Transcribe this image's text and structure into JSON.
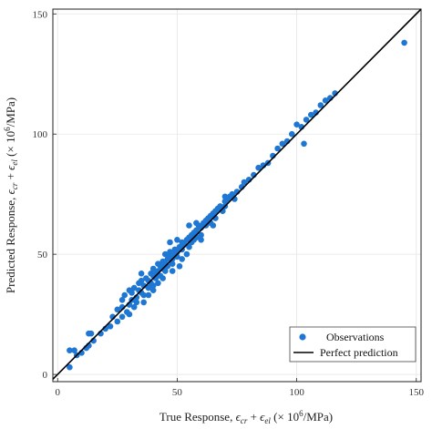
{
  "chart_data": {
    "type": "scatter",
    "title": "",
    "xlabel": "True Response, ϵcr + ϵel (× 10⁶/MPa)",
    "ylabel": "Predicted Response, ϵcr + ϵel (× 10⁶/MPa)",
    "xlabel_parts": {
      "prefix": "True Response, ",
      "eps": "ϵ",
      "sub1": "cr",
      "plus": " + ",
      "sub2": "el",
      "suffix_open": " (× 10",
      "sup": "6",
      "suffix_close": "/MPa)"
    },
    "ylabel_parts": {
      "prefix": "Predicted Response, ",
      "eps": "ϵ",
      "sub1": "cr",
      "plus": " + ",
      "sub2": "el",
      "suffix_open": " (× 10",
      "sup": "6",
      "suffix_close": "/MPa)"
    },
    "xlim": [
      -2,
      152
    ],
    "ylim": [
      -3,
      152
    ],
    "xticks": [
      0,
      50,
      100,
      150
    ],
    "yticks": [
      0,
      50,
      100,
      150
    ],
    "xtick_labels": [
      "0",
      "50",
      "100",
      "150"
    ],
    "ytick_labels": [
      "0",
      "50",
      "100",
      "150"
    ],
    "grid": true,
    "legend_position": "bottom-right",
    "marker_color": "#1f77d4",
    "line_color": "#000000",
    "series": [
      {
        "name": "Observations",
        "kind": "points"
      },
      {
        "name": "Perfect prediction",
        "kind": "line",
        "x": [
          -2,
          152
        ],
        "y": [
          -2,
          152
        ]
      }
    ],
    "points": [
      [
        5,
        10
      ],
      [
        7,
        10
      ],
      [
        5,
        3
      ],
      [
        8,
        8
      ],
      [
        10,
        9
      ],
      [
        12,
        11
      ],
      [
        13,
        12
      ],
      [
        15,
        14
      ],
      [
        13,
        17
      ],
      [
        14,
        17
      ],
      [
        18,
        17
      ],
      [
        20,
        19
      ],
      [
        22,
        20
      ],
      [
        23,
        24
      ],
      [
        25,
        22
      ],
      [
        25,
        27
      ],
      [
        27,
        28
      ],
      [
        27,
        31
      ],
      [
        28,
        33
      ],
      [
        29,
        26
      ],
      [
        30,
        25
      ],
      [
        30,
        29
      ],
      [
        31,
        31
      ],
      [
        31,
        34
      ],
      [
        32,
        36
      ],
      [
        33,
        32
      ],
      [
        33,
        30
      ],
      [
        34,
        35
      ],
      [
        34,
        38
      ],
      [
        35,
        42
      ],
      [
        35,
        34
      ],
      [
        36,
        37
      ],
      [
        36,
        33
      ],
      [
        37,
        40
      ],
      [
        38,
        36
      ],
      [
        38,
        39
      ],
      [
        39,
        42
      ],
      [
        39,
        38
      ],
      [
        40,
        41
      ],
      [
        40,
        44
      ],
      [
        40,
        37
      ],
      [
        41,
        42
      ],
      [
        41,
        40
      ],
      [
        42,
        46
      ],
      [
        42,
        43
      ],
      [
        43,
        41
      ],
      [
        43,
        45
      ],
      [
        44,
        44
      ],
      [
        44,
        47
      ],
      [
        45,
        46
      ],
      [
        45,
        43
      ],
      [
        46,
        48
      ],
      [
        46,
        45
      ],
      [
        47,
        49
      ],
      [
        47,
        51
      ],
      [
        47,
        55
      ],
      [
        48,
        48
      ],
      [
        48,
        46
      ],
      [
        49,
        50
      ],
      [
        49,
        52
      ],
      [
        50,
        49
      ],
      [
        50,
        51
      ],
      [
        51,
        53
      ],
      [
        51,
        45
      ],
      [
        52,
        52
      ],
      [
        52,
        55
      ],
      [
        53,
        54
      ],
      [
        54,
        50
      ],
      [
        54,
        56
      ],
      [
        55,
        57
      ],
      [
        55,
        53
      ],
      [
        56,
        55
      ],
      [
        56,
        58
      ],
      [
        57,
        59
      ],
      [
        57,
        56
      ],
      [
        58,
        60
      ],
      [
        58,
        57
      ],
      [
        59,
        62
      ],
      [
        60,
        61
      ],
      [
        60,
        58
      ],
      [
        61,
        63
      ],
      [
        62,
        62
      ],
      [
        62,
        64
      ],
      [
        63,
        65
      ],
      [
        64,
        63
      ],
      [
        64,
        66
      ],
      [
        65,
        67
      ],
      [
        66,
        68
      ],
      [
        66,
        65
      ],
      [
        67,
        69
      ],
      [
        68,
        70
      ],
      [
        69,
        68
      ],
      [
        70,
        72
      ],
      [
        70,
        70
      ],
      [
        71,
        73
      ],
      [
        72,
        74
      ],
      [
        73,
        75
      ],
      [
        74,
        73
      ],
      [
        75,
        76
      ],
      [
        77,
        78
      ],
      [
        78,
        80
      ],
      [
        80,
        81
      ],
      [
        82,
        83
      ],
      [
        84,
        86
      ],
      [
        86,
        87
      ],
      [
        88,
        88
      ],
      [
        90,
        91
      ],
      [
        92,
        94
      ],
      [
        94,
        96
      ],
      [
        96,
        97
      ],
      [
        98,
        100
      ],
      [
        100,
        104
      ],
      [
        102,
        103
      ],
      [
        103,
        96
      ],
      [
        104,
        106
      ],
      [
        106,
        108
      ],
      [
        108,
        109
      ],
      [
        110,
        112
      ],
      [
        112,
        114
      ],
      [
        114,
        115
      ],
      [
        116,
        117
      ],
      [
        145,
        138
      ],
      [
        32,
        28
      ],
      [
        38,
        33
      ],
      [
        45,
        50
      ],
      [
        55,
        62
      ],
      [
        42,
        38
      ],
      [
        50,
        56
      ],
      [
        36,
        30
      ],
      [
        60,
        56
      ],
      [
        58,
        63
      ],
      [
        44,
        40
      ],
      [
        52,
        48
      ],
      [
        48,
        43
      ],
      [
        65,
        62
      ],
      [
        70,
        74
      ],
      [
        40,
        35
      ],
      [
        35,
        39
      ],
      [
        30,
        35
      ],
      [
        27,
        24
      ]
    ]
  }
}
